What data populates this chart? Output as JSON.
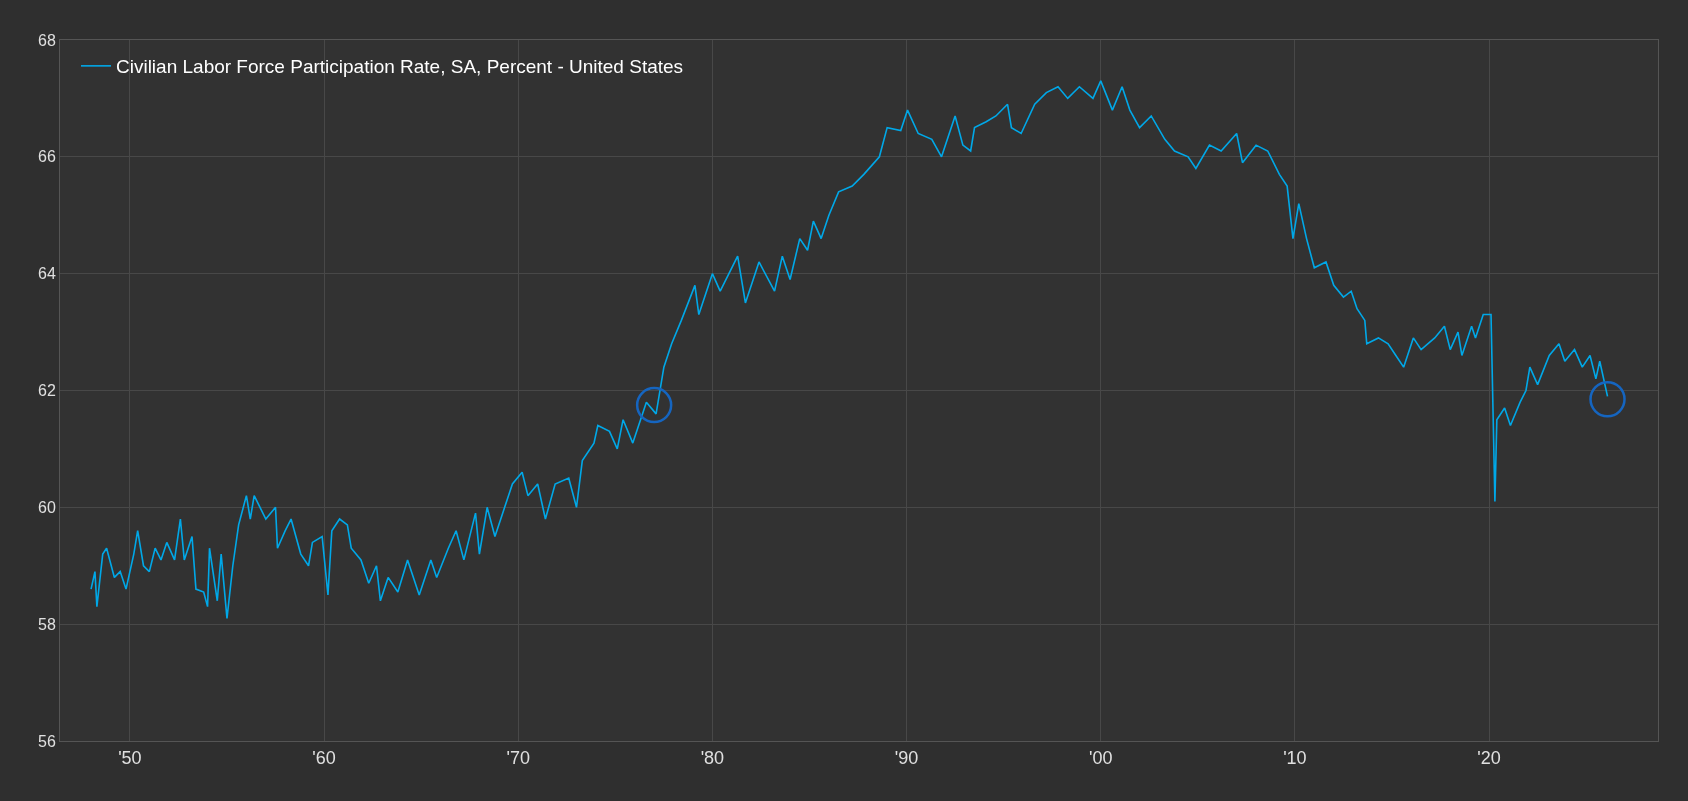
{
  "chart_data": {
    "type": "line",
    "x": [
      1948.0,
      1948.2,
      1948.3,
      1948.6,
      1948.8,
      1949.2,
      1949.5,
      1949.8,
      1950.2,
      1950.4,
      1950.7,
      1951.0,
      1951.3,
      1951.6,
      1951.9,
      1952.3,
      1952.6,
      1952.8,
      1953.2,
      1953.4,
      1953.8,
      1954.0,
      1954.1,
      1954.5,
      1954.7,
      1955.0,
      1955.3,
      1955.6,
      1956.0,
      1956.2,
      1956.4,
      1957.0,
      1957.5,
      1957.6,
      1958.0,
      1958.3,
      1958.8,
      1959.2,
      1959.4,
      1959.9,
      1960.2,
      1960.4,
      1960.8,
      1961.2,
      1961.4,
      1961.9,
      1962.3,
      1962.7,
      1962.9,
      1963.3,
      1963.8,
      1964.3,
      1964.9,
      1965.5,
      1965.8,
      1966.4,
      1966.8,
      1967.2,
      1967.8,
      1968.0,
      1968.4,
      1968.8,
      1969.3,
      1969.7,
      1970.2,
      1970.5,
      1971.0,
      1971.4,
      1971.9,
      1972.6,
      1973.0,
      1973.3,
      1973.9,
      1974.1,
      1974.7,
      1975.1,
      1975.4,
      1975.9,
      1976.3,
      1976.6,
      1977.1,
      1977.5,
      1977.9,
      1978.4,
      1979.1,
      1979.3,
      1980.0,
      1980.4,
      1981.3,
      1981.7,
      1982.4,
      1983.2,
      1983.6,
      1984.0,
      1984.5,
      1984.9,
      1985.2,
      1985.6,
      1986.0,
      1986.5,
      1987.2,
      1987.8,
      1988.6,
      1989.0,
      1989.7,
      1990.05,
      1990.6,
      1991.3,
      1991.8,
      1992.5,
      1992.9,
      1993.3,
      1993.5,
      1994.1,
      1994.6,
      1995.2,
      1995.4,
      1995.9,
      1996.6,
      1997.2,
      1997.8,
      1998.3,
      1998.9,
      1999.6,
      2000.0,
      2000.6,
      2001.1,
      2001.5,
      2002.0,
      2002.6,
      2003.3,
      2003.8,
      2004.5,
      2004.9,
      2005.6,
      2006.2,
      2007.0,
      2007.3,
      2008.0,
      2008.6,
      2009.2,
      2009.6,
      2009.9,
      2010.2,
      2010.6,
      2011.0,
      2011.6,
      2012.0,
      2012.5,
      2012.9,
      2013.2,
      2013.6,
      2013.7,
      2014.3,
      2014.8,
      2015.2,
      2015.6,
      2016.1,
      2016.5,
      2017.2,
      2017.7,
      2018.0,
      2018.4,
      2018.6,
      2019.1,
      2019.3,
      2019.7,
      2020.1,
      2020.3,
      2020.4,
      2020.8,
      2021.1,
      2021.6,
      2021.9,
      2022.1,
      2022.5,
      2023.1,
      2023.6,
      2023.9,
      2024.4,
      2024.8,
      2025.2,
      2025.5,
      2025.7,
      2026.1
    ],
    "series": [
      {
        "name": "Civilian Labor Force Participation Rate, SA, Percent - United States",
        "color": "#00a8e8",
        "values": [
          58.6,
          58.9,
          58.3,
          59.2,
          59.3,
          58.8,
          58.9,
          58.6,
          59.2,
          59.6,
          59.0,
          58.9,
          59.3,
          59.1,
          59.4,
          59.1,
          59.8,
          59.1,
          59.5,
          58.6,
          58.55,
          58.3,
          59.3,
          58.4,
          59.2,
          58.1,
          59.0,
          59.7,
          60.2,
          59.8,
          60.2,
          59.8,
          60.0,
          59.3,
          59.6,
          59.8,
          59.2,
          59.0,
          59.4,
          59.5,
          58.5,
          59.6,
          59.8,
          59.7,
          59.3,
          59.1,
          58.7,
          59.0,
          58.4,
          58.8,
          58.55,
          59.1,
          58.5,
          59.1,
          58.8,
          59.3,
          59.6,
          59.1,
          59.9,
          59.2,
          60.0,
          59.5,
          60.0,
          60.4,
          60.6,
          60.2,
          60.4,
          59.8,
          60.4,
          60.5,
          60.0,
          60.8,
          61.1,
          61.4,
          61.3,
          61.0,
          61.5,
          61.1,
          61.5,
          61.8,
          61.6,
          62.4,
          62.8,
          63.2,
          63.8,
          63.3,
          64.0,
          63.7,
          64.3,
          63.5,
          64.2,
          63.7,
          64.3,
          63.9,
          64.6,
          64.4,
          64.9,
          64.6,
          65.0,
          65.4,
          65.5,
          65.7,
          66.0,
          66.5,
          66.45,
          66.8,
          66.4,
          66.3,
          66.0,
          66.7,
          66.2,
          66.1,
          66.5,
          66.6,
          66.7,
          66.9,
          66.5,
          66.4,
          66.9,
          67.1,
          67.2,
          67.0,
          67.2,
          67.0,
          67.3,
          66.8,
          67.2,
          66.8,
          66.5,
          66.7,
          66.3,
          66.1,
          66.0,
          65.8,
          66.2,
          66.1,
          66.4,
          65.9,
          66.2,
          66.1,
          65.7,
          65.5,
          64.6,
          65.2,
          64.6,
          64.1,
          64.2,
          63.8,
          63.6,
          63.7,
          63.4,
          63.2,
          62.8,
          62.9,
          62.8,
          62.6,
          62.4,
          62.9,
          62.7,
          62.9,
          63.1,
          62.7,
          63.0,
          62.6,
          63.1,
          62.9,
          63.3,
          63.3,
          60.1,
          61.5,
          61.7,
          61.4,
          61.8,
          62.0,
          62.4,
          62.1,
          62.6,
          62.8,
          62.5,
          62.7,
          62.4,
          62.6,
          62.2,
          62.5,
          61.9
        ]
      },
      {
        "type": "scatter",
        "marker": "circle",
        "color": "#1565c0",
        "x": [
          1977.0,
          2026.1
        ],
        "values": [
          61.75,
          61.85
        ]
      }
    ],
    "xlim": [
      1946.4,
      2028.7
    ],
    "xticks": [
      {
        "value": 1950,
        "label": "'50"
      },
      {
        "value": 1960,
        "label": "'60"
      },
      {
        "value": 1970,
        "label": "'70"
      },
      {
        "value": 1980,
        "label": "'80"
      },
      {
        "value": 1990,
        "label": "'90"
      },
      {
        "value": 2000,
        "label": "'00"
      },
      {
        "value": 2010,
        "label": "'10"
      },
      {
        "value": 2020,
        "label": "'20"
      }
    ],
    "ylim": [
      56,
      68
    ],
    "yticks": [
      56,
      58,
      60,
      62,
      64,
      66,
      68
    ],
    "grid": true,
    "legend": "top left",
    "marker": "none",
    "line_style": "solid"
  }
}
